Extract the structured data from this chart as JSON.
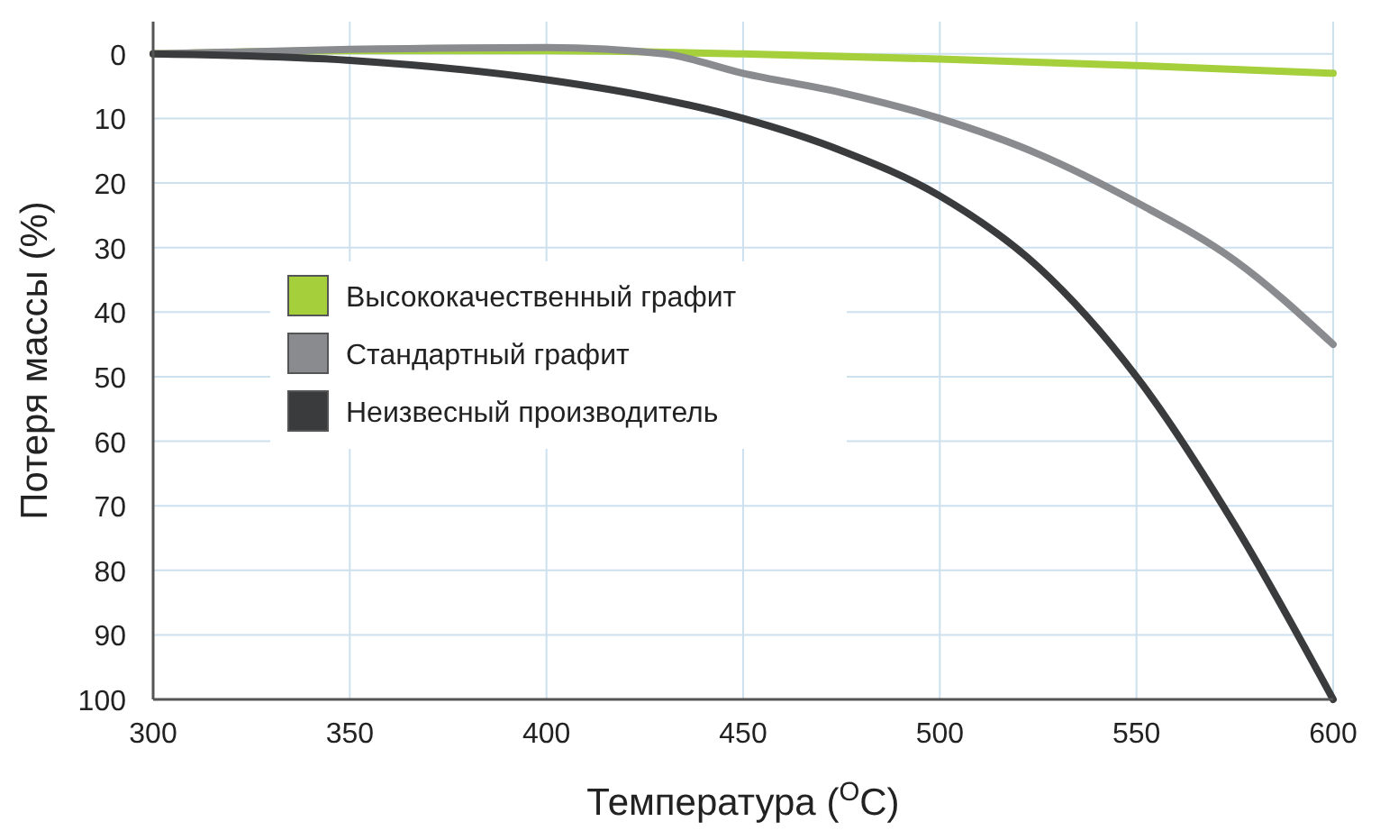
{
  "chart_data": {
    "type": "line",
    "xlabel": "Температура ($^{O}$C)",
    "ylabel": "Потеря массы (%)",
    "xlim": [
      300,
      600
    ],
    "ylim": [
      100,
      -5
    ],
    "xticks": [
      300,
      350,
      400,
      450,
      500,
      550,
      600
    ],
    "yticks": [
      0,
      10,
      20,
      30,
      40,
      50,
      60,
      70,
      80,
      90,
      100
    ],
    "grid": true,
    "legend": "left",
    "marker": "none",
    "line_style": "solid",
    "series": [
      {
        "name": "Высококачественный графит",
        "color": "#a6cf3c",
        "x": [
          300,
          350,
          400,
          450,
          500,
          550,
          600
        ],
        "values": [
          0,
          -0.5,
          -0.5,
          0,
          0.8,
          1.8,
          3
        ]
      },
      {
        "name": "Стандартный графит",
        "color": "#8a8b8f",
        "x": [
          300,
          350,
          400,
          430,
          450,
          475,
          500,
          525,
          550,
          575,
          600
        ],
        "values": [
          0,
          -0.7,
          -1,
          0,
          3,
          6,
          10,
          15.5,
          23,
          32,
          45
        ]
      },
      {
        "name": "Неизвесный производитель",
        "color": "#3a3b3d",
        "x": [
          300,
          350,
          400,
          425,
          450,
          475,
          500,
          525,
          550,
          575,
          600
        ],
        "values": [
          0,
          1,
          4,
          6.5,
          10,
          15,
          22,
          33,
          50,
          73,
          100
        ]
      }
    ]
  }
}
